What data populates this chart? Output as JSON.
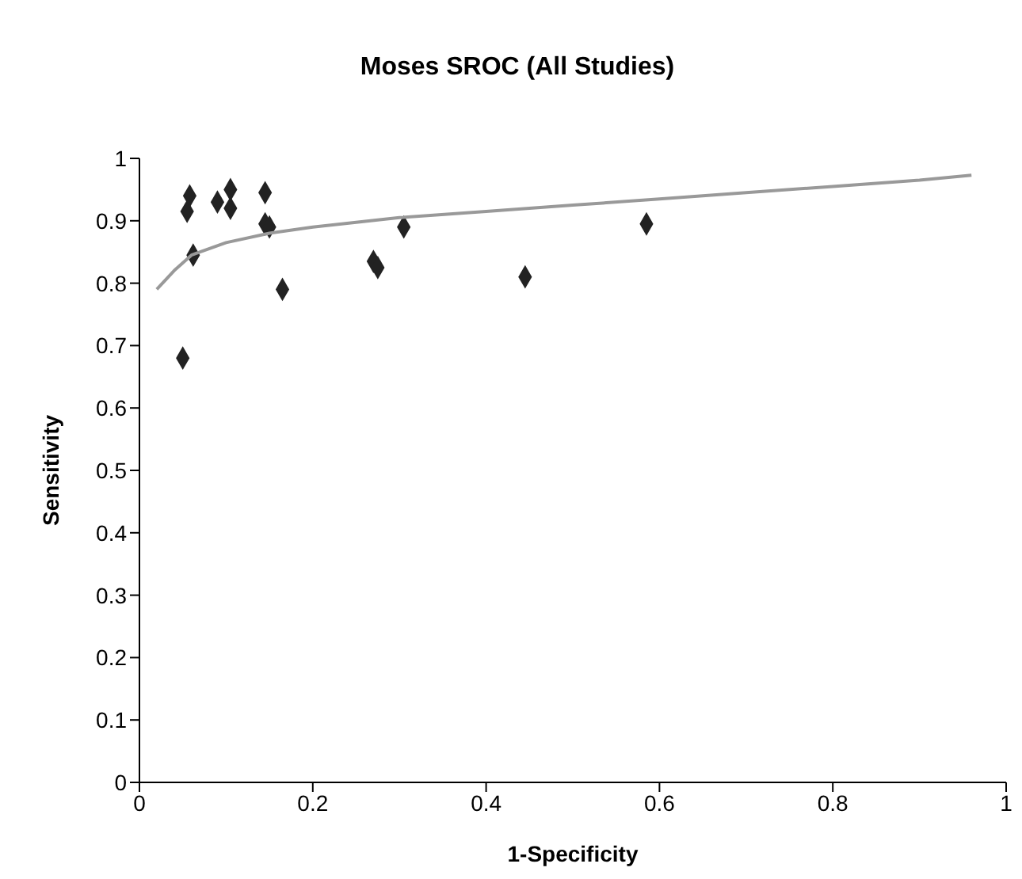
{
  "chart_data": {
    "type": "scatter",
    "title": "Moses SROC (All Studies)",
    "xlabel": "1-Specificity",
    "ylabel": "Sensitivity",
    "xlim": [
      0,
      1
    ],
    "ylim": [
      0,
      1
    ],
    "xticks": [
      0,
      0.2,
      0.4,
      0.6,
      0.8,
      1
    ],
    "yticks": [
      0,
      0.1,
      0.2,
      0.3,
      0.4,
      0.5,
      0.6,
      0.7,
      0.8,
      0.9,
      1
    ],
    "grid": false,
    "legend": false,
    "marker": "diamond",
    "series": [
      {
        "color": "#222222",
        "x": [
          0.05,
          0.055,
          0.058,
          0.062,
          0.09,
          0.105,
          0.105,
          0.145,
          0.145,
          0.15,
          0.165,
          0.27,
          0.275,
          0.305,
          0.445,
          0.585
        ],
        "values": [
          0.68,
          0.915,
          0.94,
          0.845,
          0.93,
          0.92,
          0.95,
          0.945,
          0.895,
          0.89,
          0.79,
          0.835,
          0.825,
          0.89,
          0.81,
          0.895
        ]
      },
      {
        "type": "line",
        "color": "#999999",
        "marker": "none",
        "x": [
          0.02,
          0.04,
          0.06,
          0.1,
          0.15,
          0.2,
          0.3,
          0.4,
          0.5,
          0.6,
          0.7,
          0.8,
          0.9,
          0.96
        ],
        "values": [
          0.79,
          0.82,
          0.845,
          0.865,
          0.88,
          0.89,
          0.905,
          0.915,
          0.925,
          0.935,
          0.945,
          0.955,
          0.965,
          0.973
        ]
      }
    ]
  }
}
